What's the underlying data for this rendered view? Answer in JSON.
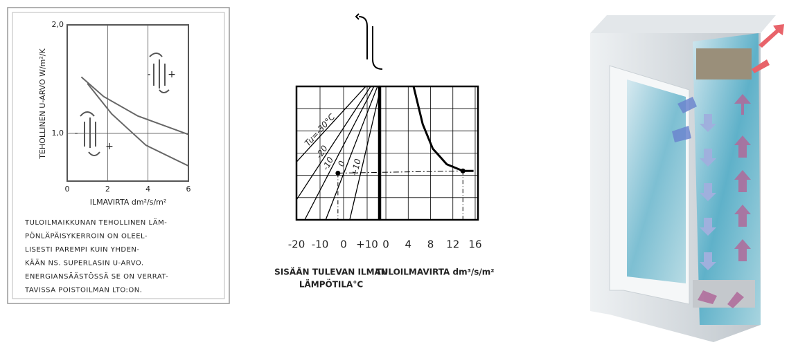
{
  "chart_data": [
    {
      "type": "line",
      "ylabel": "TEHOLLINEN U-ARVO W/m²/K",
      "xlabel": "ILMAVIRTA dm²/s/m²",
      "xlim": [
        0,
        6
      ],
      "ylim": [
        0.56,
        2.0
      ],
      "xticks": [
        0,
        2,
        4,
        6
      ],
      "yticks": [
        {
          "value": 1,
          "label": "1,0"
        },
        {
          "value": 2,
          "label": "2,0"
        }
      ],
      "grid": true,
      "series": [
        {
          "color": "#666666",
          "x": [
            0.7,
            1.8,
            3.5,
            6
          ],
          "values": [
            1.52,
            1.34,
            1.16,
            0.99
          ]
        },
        {
          "color": "#666666",
          "x": [
            1,
            2.2,
            3.9,
            6
          ],
          "values": [
            1.46,
            1.18,
            0.89,
            0.7
          ]
        }
      ],
      "annotations": [
        "-",
        "+",
        "-",
        "+"
      ],
      "note": [
        "TULOILMAIKKUNAN TEHOLLINEN LÄM-",
        "PÖNLÄPÄISYKERROIN ON OLEEL-",
        "LISESTI PAREMPI KUIN YHDEN-",
        "KÄÄN NS. SUPERLASIN U-ARVO.",
        "ENERGIANSÄÄSTÖSSÄ SE ON VERRAT-",
        "TAVISSA POISTOILMAN LTO:ON."
      ]
    },
    {
      "type": "line",
      "xlabel": [
        "SISÄÄN TULEVAN ILMAN",
        "LÄMPÖTILA°C"
      ],
      "xlim": [
        -20,
        15
      ],
      "ylim": [
        0,
        6
      ],
      "xticks": [
        -20,
        -10,
        0,
        {
          "value": 10,
          "label": "+10"
        }
      ],
      "yticks": [
        0,
        1,
        2,
        3,
        4,
        5,
        6
      ],
      "show_ytick_labels": false,
      "grid": true,
      "series": [
        {
          "name": "Tu=-30°C",
          "color": "#000000",
          "x": [
            -20,
            9.4
          ],
          "values": [
            2.6,
            6
          ]
        },
        {
          "name": "-20",
          "color": "#000000",
          "x": [
            -20,
            11.5
          ],
          "values": [
            0.9,
            6
          ]
        },
        {
          "name": "-10",
          "color": "#000000",
          "x": [
            -16.5,
            12.9
          ],
          "values": [
            0,
            6
          ]
        },
        {
          "name": "0",
          "color": "#000000",
          "x": [
            -7.6,
            14.4
          ],
          "values": [
            0,
            6
          ]
        },
        {
          "name": "+10",
          "color": "#000000",
          "x": [
            2.6,
            15
          ],
          "values": [
            0,
            5.6
          ]
        }
      ],
      "points": [
        {
          "x": -2.4,
          "y": 2.1
        }
      ]
    },
    {
      "type": "line",
      "xlabel": "TULOILMAVIRTA dm³/s/m²",
      "xlim": [
        -1,
        16.5
      ],
      "ylim": [
        0,
        6
      ],
      "xticks": [
        0,
        4,
        8,
        12,
        16
      ],
      "yticks": [
        0,
        1,
        2,
        3,
        4,
        5,
        6
      ],
      "show_ytick_labels": false,
      "grid": true,
      "series": [
        {
          "color": "#000000",
          "x": [
            4.96,
            6.6,
            8.4,
            10.9,
            13.8,
            15.7
          ],
          "values": [
            6,
            4.3,
            3.2,
            2.5,
            2.2,
            2.2
          ]
        }
      ],
      "points": [
        {
          "x": 13.8,
          "y": 2.2
        }
      ]
    }
  ]
}
